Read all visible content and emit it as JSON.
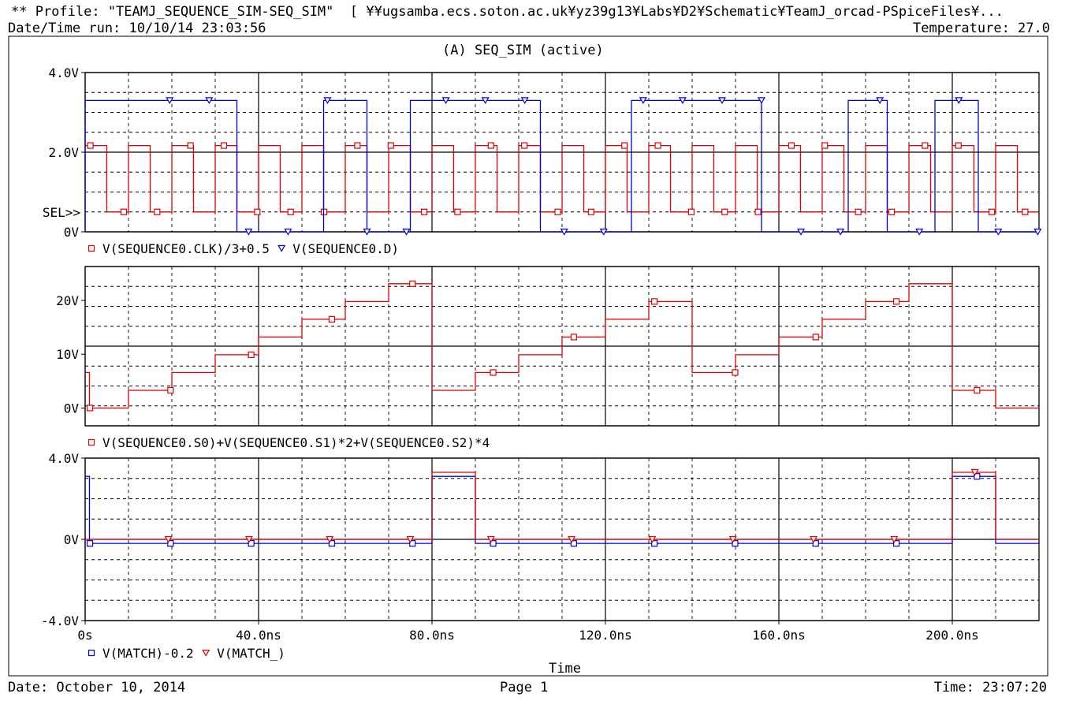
{
  "header": {
    "profile": "** Profile: \"TEAMJ_SEQUENCE_SIM-SEQ_SIM\"  [ ¥¥ugsamba.ecs.soton.ac.uk¥yz39g13¥Labs¥D2¥Schematic¥TeamJ_orcad-PSpiceFiles¥...",
    "datetime_run": "Date/Time run: 10/10/14 23:03:56",
    "temperature": "Temperature: 27.0",
    "section_title": "(A) SEQ_SIM (active)"
  },
  "footer": {
    "date": "Date: October 10, 2014",
    "page": "Page 1",
    "time": "Time: 23:07:20"
  },
  "colors": {
    "red": "#e00000",
    "blue": "#0000dd",
    "grid": "#000000"
  },
  "chart_data": [
    {
      "type": "line",
      "xlim": [
        0,
        220
      ],
      "ylim": [
        0,
        4
      ],
      "grid": true,
      "yticks": [
        {
          "v": 4,
          "label": "4.0V"
        },
        {
          "v": 2,
          "label": "2.0V"
        },
        {
          "v": 0,
          "label": "0V"
        }
      ],
      "sel_marker": {
        "v": 0.5,
        "label": "SEL>>"
      },
      "series": [
        {
          "name": "V(SEQUENCE0.CLK)/3+0.5",
          "color": "red",
          "marker": "square",
          "square_wave": {
            "low": 0.5,
            "high": 2.167,
            "period": 10,
            "rise_at": 0,
            "fall_at": 5,
            "start": 0,
            "end": 220
          }
        },
        {
          "name": "V(SEQUENCE0.D)",
          "color": "blue",
          "marker": "triangle-down",
          "pulses": [
            [
              0,
              35
            ],
            [
              55,
              65
            ],
            [
              75,
              105
            ],
            [
              126,
              156
            ],
            [
              176,
              185
            ],
            [
              196,
              206
            ]
          ],
          "high": 3.3,
          "low": 0
        }
      ],
      "legend": [
        {
          "label": "V(SEQUENCE0.CLK)/3+0.5",
          "marker": "square",
          "color": "red"
        },
        {
          "label": "V(SEQUENCE0.D)",
          "marker": "triangle-down",
          "color": "blue"
        }
      ]
    },
    {
      "type": "line",
      "xlim": [
        0,
        220
      ],
      "ylim": [
        -3.3,
        26.3
      ],
      "grid": true,
      "yticks": [
        {
          "v": 20,
          "label": "20V"
        },
        {
          "v": 10,
          "label": "10V"
        },
        {
          "v": 0,
          "label": "0V"
        }
      ],
      "series": [
        {
          "name": "V(SEQUENCE0.S0)+V(SEQUENCE0.S1)*2+V(SEQUENCE0.S2)*4",
          "color": "red",
          "marker": "square",
          "x": [
            0,
            1,
            10,
            20,
            30,
            40,
            50,
            60,
            70,
            80,
            90,
            100,
            110,
            120,
            130,
            140,
            150,
            160,
            170,
            180,
            190,
            200,
            210,
            220
          ],
          "y": [
            6.6,
            0,
            3.3,
            6.6,
            9.9,
            13.2,
            16.5,
            19.8,
            23.1,
            3.3,
            6.6,
            9.9,
            13.2,
            16.5,
            19.8,
            6.6,
            9.9,
            13.2,
            16.5,
            19.8,
            23.1,
            3.3,
            0,
            0
          ]
        }
      ],
      "legend": [
        {
          "label": "V(SEQUENCE0.S0)+V(SEQUENCE0.S1)*2+V(SEQUENCE0.S2)*4",
          "marker": "square",
          "color": "red"
        }
      ]
    },
    {
      "type": "line",
      "xlim": [
        0,
        220
      ],
      "ylim": [
        -4,
        4
      ],
      "grid": true,
      "yticks": [
        {
          "v": 4,
          "label": "4.0V"
        },
        {
          "v": 0,
          "label": "0V"
        },
        {
          "v": -4,
          "label": "-4.0V"
        }
      ],
      "xticks": [
        {
          "v": 0,
          "label": "0s"
        },
        {
          "v": 40,
          "label": "40.0ns"
        },
        {
          "v": 80,
          "label": "80.0ns"
        },
        {
          "v": 120,
          "label": "120.0ns"
        },
        {
          "v": 160,
          "label": "160.0ns"
        },
        {
          "v": 200,
          "label": "200.0ns"
        }
      ],
      "xlabel": "Time",
      "series": [
        {
          "name": "V(MATCH)-0.2",
          "color": "blue",
          "marker": "square",
          "x": [
            0,
            1,
            80,
            90,
            200,
            210,
            220
          ],
          "y": [
            3.1,
            -0.2,
            3.1,
            -0.2,
            3.1,
            -0.2,
            -0.2
          ]
        },
        {
          "name": "V(MATCH_)",
          "color": "red",
          "marker": "triangle-down",
          "x": [
            0,
            80,
            90,
            200,
            210,
            220
          ],
          "y": [
            0,
            3.3,
            0,
            3.3,
            0,
            0
          ]
        }
      ],
      "legend": [
        {
          "label": "V(MATCH)-0.2",
          "marker": "square",
          "color": "blue"
        },
        {
          "label": "V(MATCH_)",
          "marker": "triangle-down",
          "color": "red"
        }
      ]
    }
  ]
}
